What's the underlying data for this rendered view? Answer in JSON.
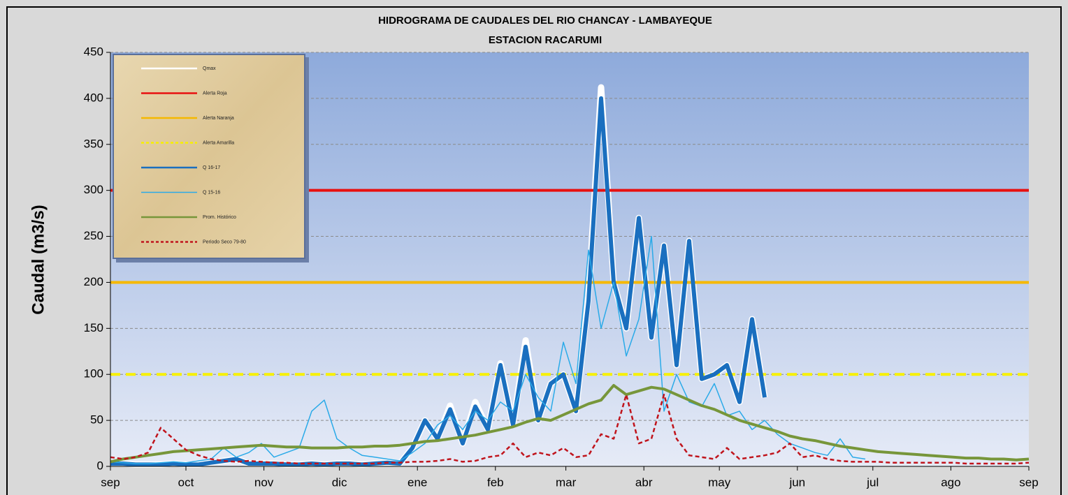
{
  "chart_data": {
    "type": "line",
    "title": "HIDROGRAMA DE CAUDALES  DEL RIO CHANCAY - LAMBAYEQUE",
    "subtitle": "ESTACION RACARUMI",
    "y_label": "Caudal (m3/s)",
    "ylim": [
      0,
      450
    ],
    "yticks": [
      0,
      50,
      100,
      150,
      200,
      250,
      300,
      350,
      400,
      450
    ],
    "xlim": [
      0,
      365
    ],
    "xticks": [
      {
        "value": 0,
        "label": "sep"
      },
      {
        "value": 30,
        "label": "oct"
      },
      {
        "value": 61,
        "label": "nov"
      },
      {
        "value": 91,
        "label": "dic"
      },
      {
        "value": 122,
        "label": "ene"
      },
      {
        "value": 153,
        "label": "feb"
      },
      {
        "value": 181,
        "label": "mar"
      },
      {
        "value": 212,
        "label": "abr"
      },
      {
        "value": 242,
        "label": "may"
      },
      {
        "value": 273,
        "label": "jun"
      },
      {
        "value": 303,
        "label": "jul"
      },
      {
        "value": 334,
        "label": "ago"
      },
      {
        "value": 365,
        "label": "sep"
      }
    ],
    "grid": true,
    "legend": "upper left",
    "x": [
      0,
      5,
      10,
      15,
      20,
      25,
      30,
      35,
      40,
      45,
      50,
      55,
      60,
      65,
      70,
      75,
      80,
      85,
      90,
      95,
      100,
      105,
      110,
      115,
      120,
      125,
      130,
      135,
      140,
      145,
      150,
      155,
      160,
      165,
      170,
      175,
      180,
      185,
      190,
      195,
      200,
      205,
      210,
      215,
      220,
      225,
      230,
      235,
      240,
      245,
      250,
      255,
      260,
      265,
      270,
      275,
      280,
      285,
      290,
      295,
      300,
      305,
      310,
      315,
      320,
      325,
      330,
      335,
      340,
      345,
      350,
      355,
      360,
      365
    ],
    "series": [
      {
        "name": "Qmax",
        "color": "#ffffff",
        "values": [
          3,
          3,
          2,
          2,
          2,
          3,
          2,
          2,
          4,
          6,
          8,
          3,
          3,
          3,
          2,
          2,
          3,
          2,
          3,
          3,
          2,
          3,
          4,
          3,
          20,
          50,
          30,
          66,
          25,
          70,
          40,
          112,
          45,
          137,
          50,
          90,
          100,
          60,
          185,
          412,
          200,
          150,
          270,
          140,
          240,
          110,
          245,
          95,
          100,
          110,
          70,
          160,
          75,
          null,
          null,
          null,
          null,
          null,
          null,
          null,
          null,
          null,
          null,
          null,
          null,
          null,
          null,
          null,
          null,
          null,
          null,
          null,
          null,
          null
        ]
      },
      {
        "name": "Alerta Roja",
        "color": "#e81010",
        "value": 300
      },
      {
        "name": "Alerta Naranja",
        "color": "#f5b800",
        "value": 200
      },
      {
        "name": "Alerta Amarilla",
        "color": "#f7f000",
        "value": 100,
        "dash": true
      },
      {
        "name": "Q 16-17",
        "color": "#1a6fbf",
        "values": [
          3,
          3,
          2,
          2,
          2,
          3,
          2,
          2,
          4,
          6,
          8,
          3,
          3,
          3,
          2,
          2,
          3,
          2,
          3,
          3,
          2,
          3,
          4,
          3,
          20,
          50,
          30,
          62,
          25,
          65,
          40,
          110,
          45,
          130,
          50,
          90,
          100,
          60,
          180,
          400,
          200,
          150,
          270,
          140,
          240,
          110,
          245,
          95,
          100,
          110,
          70,
          160,
          75,
          null,
          null,
          null,
          null,
          null,
          null,
          null,
          null,
          null,
          null,
          null,
          null,
          null,
          null,
          null,
          null,
          null,
          null,
          null,
          null,
          null
        ]
      },
      {
        "name": "Q 15-16",
        "color": "#2aaae8",
        "values": [
          5,
          4,
          3,
          3,
          4,
          5,
          4,
          6,
          8,
          20,
          10,
          15,
          25,
          10,
          15,
          20,
          60,
          72,
          30,
          20,
          12,
          10,
          8,
          6,
          15,
          25,
          45,
          55,
          40,
          60,
          50,
          70,
          60,
          100,
          75,
          60,
          135,
          90,
          235,
          150,
          200,
          120,
          160,
          250,
          60,
          100,
          70,
          65,
          90,
          55,
          60,
          40,
          50,
          35,
          25,
          20,
          15,
          12,
          30,
          10,
          8,
          null,
          null,
          null,
          null,
          null,
          null,
          null,
          null,
          null,
          null,
          null,
          null,
          null
        ]
      },
      {
        "name": "Prom. Histórico",
        "color": "#77963a",
        "values": [
          5,
          8,
          10,
          12,
          14,
          16,
          17,
          18,
          19,
          20,
          21,
          22,
          23,
          22,
          21,
          21,
          20,
          20,
          20,
          21,
          21,
          22,
          22,
          23,
          25,
          27,
          28,
          30,
          32,
          34,
          37,
          40,
          43,
          48,
          52,
          50,
          56,
          62,
          68,
          72,
          88,
          78,
          82,
          86,
          84,
          78,
          72,
          66,
          62,
          56,
          50,
          46,
          42,
          38,
          33,
          30,
          28,
          25,
          22,
          20,
          18,
          16,
          15,
          14,
          13,
          12,
          11,
          10,
          9,
          9,
          8,
          8,
          7,
          8
        ]
      },
      {
        "name": "Periodo Seco 79-80",
        "color": "#c0141c",
        "dash": true,
        "values": [
          10,
          8,
          10,
          15,
          42,
          30,
          18,
          12,
          8,
          6,
          5,
          6,
          5,
          4,
          4,
          3,
          3,
          3,
          3,
          3,
          3,
          3,
          4,
          4,
          5,
          5,
          6,
          8,
          5,
          6,
          10,
          12,
          25,
          10,
          15,
          12,
          20,
          10,
          12,
          35,
          30,
          78,
          25,
          30,
          78,
          30,
          12,
          10,
          8,
          20,
          8,
          10,
          12,
          15,
          25,
          10,
          12,
          8,
          6,
          5,
          5,
          5,
          4,
          4,
          4,
          4,
          4,
          4,
          3,
          3,
          3,
          3,
          3,
          4
        ]
      }
    ]
  }
}
